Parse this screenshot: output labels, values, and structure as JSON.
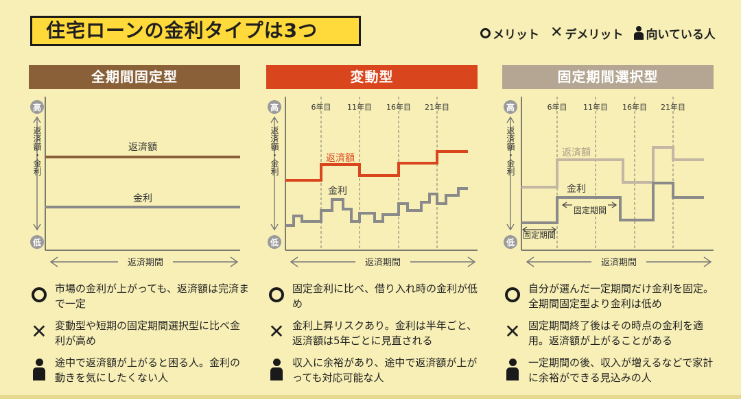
{
  "title": "住宅ローンの金利タイプは3つ",
  "legend": {
    "merit": "メリット",
    "demerit": "デメリット",
    "suited": "向いている人"
  },
  "axis": {
    "high": "高",
    "low": "低",
    "ylabel": "返済額・金利",
    "xlabel": "返済期間"
  },
  "panels": [
    {
      "title": "全期間固定型",
      "repayment_label": "返済額",
      "rate_label": "金利",
      "merit": "市場の金利が上がっても、返済額は完済まで一定",
      "demerit": "変動型や短期の固定期間選択型に比べ金利が高め",
      "suited": "途中で返済額が上がると困る人。金利の動きを気にしたくない人"
    },
    {
      "title": "変動型",
      "years": [
        "6年目",
        "11年目",
        "16年目",
        "21年目"
      ],
      "repayment_label": "返済額",
      "rate_label": "金利",
      "merit": "固定金利に比べ、借り入れ時の金利が低め",
      "demerit": "金利上昇リスクあり。金利は半年ごと、返済額は5年ごとに見直される",
      "suited": "収入に余裕があり、途中で返済額が上がっても対応可能な人"
    },
    {
      "title": "固定期間選択型",
      "years": [
        "6年目",
        "11年目",
        "16年目",
        "21年目"
      ],
      "repayment_label": "返済額",
      "rate_label": "金利",
      "fixed_label_1": "固定期間",
      "fixed_label_2": "固定期間",
      "merit": "自分が選んだ一定期間だけ金利を固定。全期間固定型より金利は低め",
      "demerit": "固定期間終了後はその時点の金利を適用。返済額が上がることがある",
      "suited": "一定期間の後、収入が増えるなどで家計に余裕ができる見込みの人"
    }
  ],
  "colors": {
    "background": "#f7efb6",
    "title_bg": "#ffda3a",
    "panel1": "#8a6038",
    "panel2": "#d9451d",
    "panel3": "#b4a692",
    "repayment_line_1": "#8a6038",
    "repayment_line_2": "#d9451d",
    "repayment_line_3": "#c2b6a4",
    "rate_line": "#8a8a8a",
    "axis": "#555555"
  }
}
